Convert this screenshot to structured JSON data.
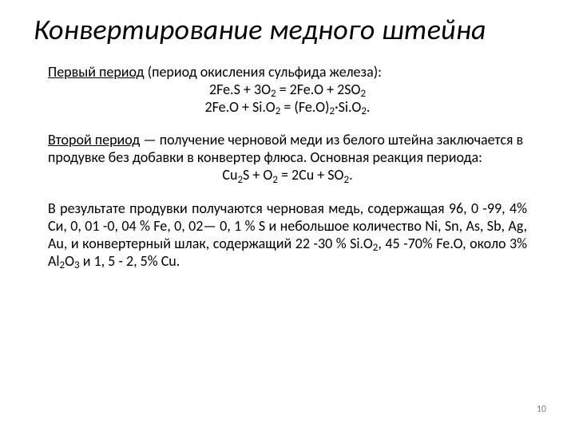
{
  "background_color": "#ffffff",
  "text_color": "#000000",
  "pagenum_color": "#7f7f7f",
  "title": {
    "text": "Конвертирование медного штейна",
    "font_family": "Calibri",
    "font_style": "italic",
    "font_weight": 400,
    "font_size_pt": 27
  },
  "body": {
    "font_family": "Calibri",
    "font_size_pt": 14,
    "paragraphs": {
      "p1_label": "Первый период",
      "p1_rest": " (период окисления сульфида железа):",
      "eq1": "2Fe.S + 3O<sub>2</sub> = 2Fe.O + 2SO<sub>2</sub>",
      "eq2": "2Fe.O + Si.O<sub>2</sub> = (Fe.O)<sub>2</sub>·Si.O<sub>2</sub>.",
      "p2_label": "Второй период",
      "p2_rest": " — получение черновой меди из белого штейна заключается в продувке без добавки в конвертер флюса. Основная реакция периода:",
      "eq3": "Cu<sub>2</sub>S + O<sub>2</sub> = 2Cu + SO<sub>2</sub>.",
      "p3": "В результате продувки получаются черновая медь, содержащая 96, 0 -99, 4% Си, 0, 01 -0, 04 % Fe, 0, 02— 0, 1 % S и небольшое количество Ni, Sn, As, Sb, Ag, Au, и конвертерный шлак, содержащий 22 -30 % Si.O<sub>2</sub>, 45 -70% Fe.O, около 3% Al<sub>2</sub>O<sub>3</sub> и 1, 5 - 2, 5% Cu."
    }
  },
  "page_number": "10"
}
